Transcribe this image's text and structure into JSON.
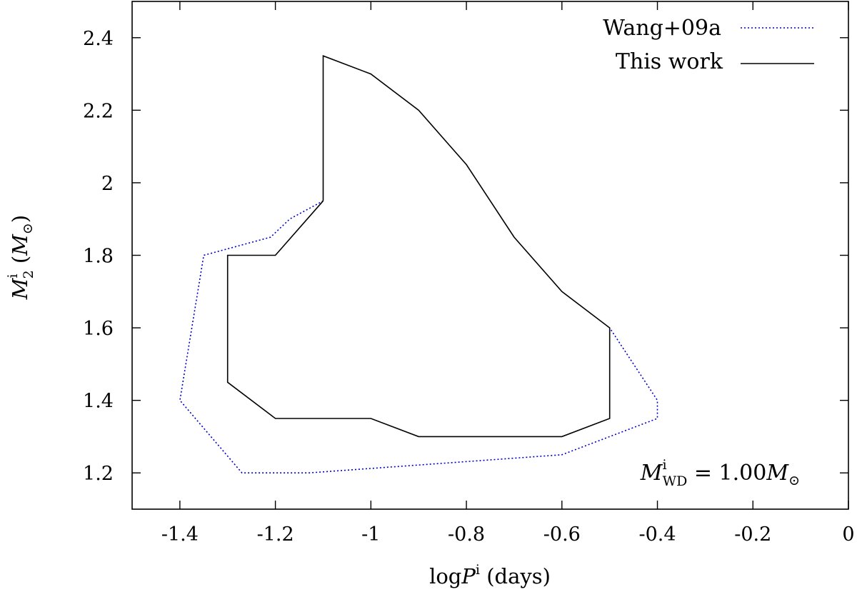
{
  "chart_data": {
    "type": "line",
    "xlabel": {
      "pre": "log",
      "var": "P",
      "sup": "i",
      "unit": "(days)"
    },
    "ylabel": {
      "var": "M",
      "sup": "i",
      "sub": "2",
      "unit_open": "(",
      "unit_var": "M",
      "unit_sub": "⊙",
      "unit_close": ")"
    },
    "xlim": [
      -1.5,
      0
    ],
    "ylim": [
      1.1,
      2.5
    ],
    "xticks": [
      -1.4,
      -1.2,
      -1,
      -0.8,
      -0.6,
      -0.4,
      -0.2,
      0
    ],
    "xtick_labels": [
      "-1.4",
      "-1.2",
      "-1",
      "-0.8",
      "-0.6",
      "-0.4",
      "-0.2",
      "0"
    ],
    "yticks": [
      1.2,
      1.4,
      1.6,
      1.8,
      2.0,
      2.2,
      2.4
    ],
    "ytick_labels": [
      "1.2",
      "1.4",
      "1.6",
      "1.8",
      "2",
      "2.2",
      "2.4"
    ],
    "grid": false,
    "legend_position": "top-right",
    "series": [
      {
        "name": "Wang+09a",
        "color": "#0000cc",
        "style": "dotted",
        "points": [
          [
            -1.1,
            1.95
          ],
          [
            -1.17,
            1.9
          ],
          [
            -1.21,
            1.85
          ],
          [
            -1.35,
            1.8
          ],
          [
            -1.4,
            1.4
          ],
          [
            -1.27,
            1.2
          ],
          [
            -1.13,
            1.2
          ],
          [
            -0.6,
            1.25
          ],
          [
            -0.4,
            1.35
          ],
          [
            -0.4,
            1.4
          ],
          [
            -0.5,
            1.6
          ]
        ]
      },
      {
        "name": "This work",
        "color": "#000000",
        "style": "solid",
        "points": [
          [
            -1.1,
            1.95
          ],
          [
            -1.1,
            2.35
          ],
          [
            -1.0,
            2.3
          ],
          [
            -0.9,
            2.2
          ],
          [
            -0.8,
            2.05
          ],
          [
            -0.7,
            1.85
          ],
          [
            -0.6,
            1.7
          ],
          [
            -0.5,
            1.6
          ],
          [
            -0.5,
            1.35
          ],
          [
            -0.6,
            1.3
          ],
          [
            -0.9,
            1.3
          ],
          [
            -1.0,
            1.35
          ],
          [
            -1.2,
            1.35
          ],
          [
            -1.3,
            1.45
          ],
          [
            -1.3,
            1.8
          ],
          [
            -1.2,
            1.8
          ],
          [
            -1.1,
            1.95
          ]
        ]
      }
    ],
    "annotation": {
      "var": "M",
      "sup": "i",
      "sub": "WD",
      "rel": "= 1.00",
      "mvar": "M",
      "msub": "⊙"
    }
  }
}
